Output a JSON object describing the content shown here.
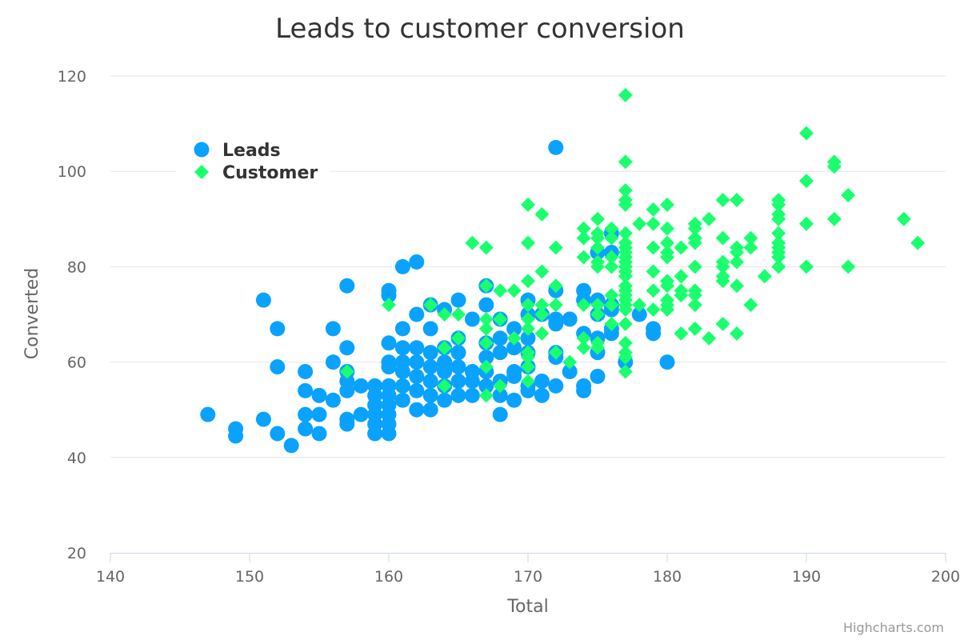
{
  "chart_data": {
    "type": "scatter",
    "title": "Leads to customer conversion",
    "xlabel": "Total",
    "ylabel": "Converted",
    "xlim": [
      140,
      200
    ],
    "ylim": [
      20,
      120
    ],
    "xticks": [
      "140",
      "150",
      "160",
      "170",
      "180",
      "190",
      "200"
    ],
    "yticks": [
      "20",
      "40",
      "60",
      "80",
      "100",
      "120"
    ],
    "grid": true,
    "legend_position": "top-left",
    "credits": "Highcharts.com",
    "series": [
      {
        "name": "Leads",
        "marker": "circle",
        "color": "#0aa2ff",
        "points": [
          [
            147,
            49
          ],
          [
            149,
            46
          ],
          [
            149,
            44.5
          ],
          [
            151,
            73
          ],
          [
            151,
            48
          ],
          [
            152,
            67
          ],
          [
            152,
            59
          ],
          [
            152,
            45
          ],
          [
            153,
            42.5
          ],
          [
            154,
            58
          ],
          [
            154,
            54
          ],
          [
            154,
            49
          ],
          [
            154,
            46
          ],
          [
            155,
            53
          ],
          [
            155,
            49
          ],
          [
            155,
            45
          ],
          [
            156,
            67
          ],
          [
            156,
            60
          ],
          [
            156,
            52
          ],
          [
            157,
            76
          ],
          [
            157,
            63
          ],
          [
            157,
            58
          ],
          [
            157,
            56
          ],
          [
            157,
            54
          ],
          [
            157,
            48
          ],
          [
            157,
            47
          ],
          [
            158,
            55
          ],
          [
            158,
            49
          ],
          [
            159,
            55
          ],
          [
            159,
            53
          ],
          [
            159,
            51
          ],
          [
            159,
            49
          ],
          [
            159,
            47
          ],
          [
            159,
            45
          ],
          [
            160,
            75
          ],
          [
            160,
            74
          ],
          [
            160,
            64
          ],
          [
            160,
            60
          ],
          [
            160,
            59
          ],
          [
            160,
            55
          ],
          [
            160,
            53
          ],
          [
            160,
            51
          ],
          [
            160,
            49
          ],
          [
            160,
            47
          ],
          [
            160,
            45
          ],
          [
            161,
            80
          ],
          [
            161,
            67
          ],
          [
            161,
            63
          ],
          [
            161,
            60
          ],
          [
            161,
            58
          ],
          [
            161,
            55
          ],
          [
            161,
            52
          ],
          [
            162,
            81
          ],
          [
            162,
            70
          ],
          [
            162,
            63
          ],
          [
            162,
            60
          ],
          [
            162,
            57
          ],
          [
            162,
            54
          ],
          [
            162,
            50
          ],
          [
            163,
            72
          ],
          [
            163,
            67
          ],
          [
            163,
            62
          ],
          [
            163,
            59
          ],
          [
            163,
            56
          ],
          [
            163,
            53
          ],
          [
            163,
            50
          ],
          [
            164,
            71
          ],
          [
            164,
            63
          ],
          [
            164,
            60
          ],
          [
            164,
            58
          ],
          [
            164,
            55
          ],
          [
            164,
            52
          ],
          [
            165,
            73
          ],
          [
            165,
            65
          ],
          [
            165,
            62
          ],
          [
            165,
            59
          ],
          [
            165,
            56
          ],
          [
            165,
            53
          ],
          [
            166,
            69
          ],
          [
            166,
            58
          ],
          [
            166,
            56
          ],
          [
            166,
            53
          ],
          [
            167,
            76
          ],
          [
            167,
            72
          ],
          [
            167,
            64
          ],
          [
            167,
            61
          ],
          [
            167,
            58
          ],
          [
            167,
            55
          ],
          [
            168,
            69
          ],
          [
            168,
            65
          ],
          [
            168,
            62
          ],
          [
            168,
            56
          ],
          [
            168,
            53
          ],
          [
            168,
            49
          ],
          [
            169,
            67
          ],
          [
            169,
            63
          ],
          [
            169,
            58
          ],
          [
            169,
            57
          ],
          [
            169,
            52
          ],
          [
            170,
            73
          ],
          [
            170,
            70
          ],
          [
            170,
            65
          ],
          [
            170,
            62
          ],
          [
            170,
            59
          ],
          [
            170,
            55
          ],
          [
            170,
            54
          ],
          [
            171,
            70
          ],
          [
            171,
            56
          ],
          [
            171,
            53
          ],
          [
            172,
            105
          ],
          [
            172,
            75
          ],
          [
            172,
            69
          ],
          [
            172,
            68
          ],
          [
            172,
            62
          ],
          [
            172,
            61
          ],
          [
            172,
            55
          ],
          [
            173,
            69
          ],
          [
            173,
            58
          ],
          [
            174,
            75
          ],
          [
            174,
            73
          ],
          [
            174,
            66
          ],
          [
            174,
            55
          ],
          [
            174,
            54
          ],
          [
            175,
            83
          ],
          [
            175,
            73
          ],
          [
            175,
            70
          ],
          [
            175,
            65
          ],
          [
            175,
            62
          ],
          [
            175,
            57
          ],
          [
            176,
            87
          ],
          [
            176,
            83
          ],
          [
            176,
            72
          ],
          [
            176,
            71
          ],
          [
            176,
            67
          ],
          [
            176,
            66
          ],
          [
            177,
            60
          ],
          [
            178,
            70
          ],
          [
            179,
            67
          ],
          [
            179,
            66
          ],
          [
            180,
            60
          ]
        ]
      },
      {
        "name": "Customer",
        "marker": "diamond",
        "color": "#1aff6e",
        "points": [
          [
            157,
            58
          ],
          [
            160,
            72
          ],
          [
            163,
            72
          ],
          [
            164,
            70
          ],
          [
            164,
            63
          ],
          [
            164,
            55
          ],
          [
            165,
            70
          ],
          [
            165,
            65
          ],
          [
            166,
            85
          ],
          [
            167,
            84
          ],
          [
            167,
            76
          ],
          [
            167,
            69
          ],
          [
            167,
            67
          ],
          [
            167,
            64
          ],
          [
            167,
            59
          ],
          [
            167,
            53
          ],
          [
            168,
            75
          ],
          [
            168,
            69
          ],
          [
            168,
            55
          ],
          [
            169,
            75
          ],
          [
            169,
            65
          ],
          [
            170,
            93
          ],
          [
            170,
            85
          ],
          [
            170,
            77
          ],
          [
            170,
            72
          ],
          [
            170,
            69
          ],
          [
            170,
            67
          ],
          [
            170,
            62
          ],
          [
            170,
            61
          ],
          [
            170,
            59
          ],
          [
            170,
            56
          ],
          [
            171,
            91
          ],
          [
            171,
            79
          ],
          [
            171,
            72
          ],
          [
            171,
            70
          ],
          [
            171,
            66
          ],
          [
            172,
            84
          ],
          [
            172,
            76
          ],
          [
            172,
            72
          ],
          [
            172,
            62
          ],
          [
            173,
            60
          ],
          [
            174,
            88
          ],
          [
            174,
            86
          ],
          [
            174,
            82
          ],
          [
            174,
            72
          ],
          [
            174,
            65
          ],
          [
            174,
            63
          ],
          [
            175,
            90
          ],
          [
            175,
            87
          ],
          [
            175,
            86
          ],
          [
            175,
            84
          ],
          [
            175,
            81
          ],
          [
            175,
            80
          ],
          [
            175,
            72
          ],
          [
            175,
            70
          ],
          [
            175,
            64
          ],
          [
            175,
            63
          ],
          [
            176,
            88
          ],
          [
            176,
            86
          ],
          [
            176,
            82
          ],
          [
            176,
            80
          ],
          [
            176,
            74
          ],
          [
            176,
            72
          ],
          [
            176,
            68
          ],
          [
            177,
            116
          ],
          [
            177,
            102
          ],
          [
            177,
            96
          ],
          [
            177,
            94
          ],
          [
            177,
            93
          ],
          [
            177,
            87
          ],
          [
            177,
            85
          ],
          [
            177,
            84
          ],
          [
            177,
            83
          ],
          [
            177,
            82
          ],
          [
            177,
            81
          ],
          [
            177,
            80
          ],
          [
            177,
            79
          ],
          [
            177,
            78
          ],
          [
            177,
            76
          ],
          [
            177,
            75
          ],
          [
            177,
            74
          ],
          [
            177,
            73
          ],
          [
            177,
            72
          ],
          [
            177,
            71
          ],
          [
            177,
            68
          ],
          [
            177,
            64
          ],
          [
            177,
            62
          ],
          [
            177,
            61
          ],
          [
            177,
            58
          ],
          [
            178,
            89
          ],
          [
            178,
            72
          ],
          [
            179,
            92
          ],
          [
            179,
            89
          ],
          [
            179,
            84
          ],
          [
            179,
            79
          ],
          [
            179,
            75
          ],
          [
            179,
            71
          ],
          [
            180,
            93
          ],
          [
            180,
            88
          ],
          [
            180,
            85
          ],
          [
            180,
            83
          ],
          [
            180,
            82
          ],
          [
            180,
            77
          ],
          [
            180,
            76
          ],
          [
            180,
            73
          ],
          [
            180,
            72
          ],
          [
            180,
            71
          ],
          [
            181,
            84
          ],
          [
            181,
            78
          ],
          [
            181,
            75
          ],
          [
            181,
            74
          ],
          [
            181,
            66
          ],
          [
            182,
            89
          ],
          [
            182,
            88
          ],
          [
            182,
            86
          ],
          [
            182,
            85
          ],
          [
            182,
            80
          ],
          [
            182,
            75
          ],
          [
            182,
            74
          ],
          [
            182,
            72
          ],
          [
            182,
            67
          ],
          [
            183,
            90
          ],
          [
            183,
            65
          ],
          [
            184,
            94
          ],
          [
            184,
            86
          ],
          [
            184,
            81
          ],
          [
            184,
            80
          ],
          [
            184,
            78
          ],
          [
            184,
            77
          ],
          [
            184,
            68
          ],
          [
            185,
            94
          ],
          [
            185,
            84
          ],
          [
            185,
            83
          ],
          [
            185,
            81
          ],
          [
            185,
            76
          ],
          [
            185,
            66
          ],
          [
            186,
            86
          ],
          [
            186,
            84
          ],
          [
            186,
            72
          ],
          [
            187,
            78
          ],
          [
            188,
            94
          ],
          [
            188,
            93
          ],
          [
            188,
            91
          ],
          [
            188,
            90
          ],
          [
            188,
            87
          ],
          [
            188,
            85
          ],
          [
            188,
            84
          ],
          [
            188,
            83
          ],
          [
            188,
            82
          ],
          [
            188,
            80
          ],
          [
            190,
            108
          ],
          [
            190,
            98
          ],
          [
            190,
            89
          ],
          [
            190,
            80
          ],
          [
            192,
            102
          ],
          [
            192,
            101
          ],
          [
            192,
            90
          ],
          [
            193,
            95
          ],
          [
            193,
            80
          ],
          [
            197,
            90
          ],
          [
            198,
            85
          ]
        ]
      }
    ]
  }
}
